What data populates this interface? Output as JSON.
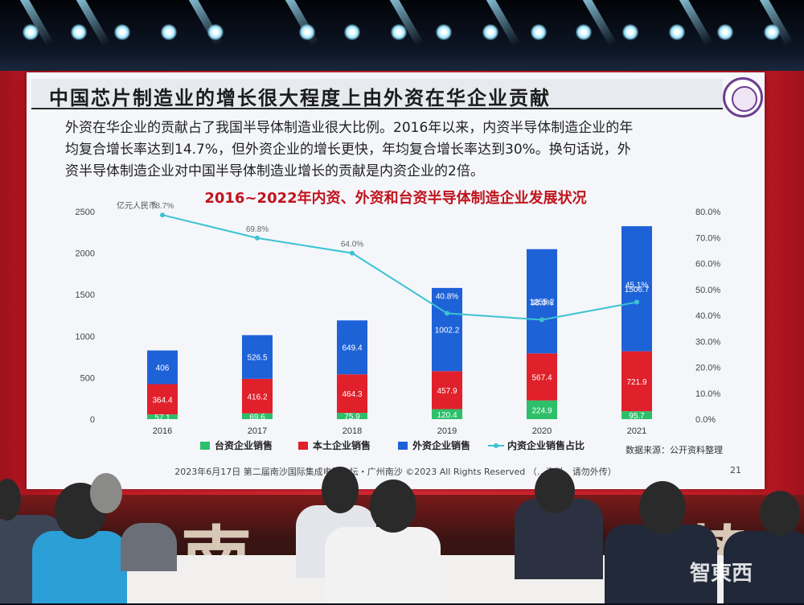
{
  "slide": {
    "title": "中国芯片制造业的增长很大程度上由外资在华企业贡献",
    "paragraph_lines": [
      "外资在华企业的贡献占了我国半导体制造业很大比例。2016年以来，内资半导体制造企业的年",
      "均复合增长率达到14.7%，但外资企业的增长更快，年均复合增长率达到30%。换句话说，外",
      "资半导体制造企业对中国半导体制造业增长的贡献是内资企业的2倍。"
    ],
    "chart_heading": "2016~2022年内资、外资和台资半导体制造企业发展状况",
    "source_note": "数据来源：公开资料整理",
    "footer": "2023年6月17日 第二届南沙国际集成电路…坛・广州南沙 ©2023 All Rights Reserved （…资料，请勿外传）",
    "page_number": "21"
  },
  "chart_data": {
    "type": "bar",
    "stacked": true,
    "categories": [
      "2016",
      "2017",
      "2018",
      "2019",
      "2020",
      "2021"
    ],
    "unit_label": "亿元人民币",
    "series": [
      {
        "name": "台资企业销售",
        "color": "#2dbf6a",
        "values": [
          57.1,
          69.6,
          75.9,
          120.4,
          224.9,
          95.7
        ],
        "labels": [
          "57.1",
          "69.6",
          "75.9",
          "120.4",
          "224.9",
          "95.7"
        ]
      },
      {
        "name": "本土企业销售",
        "color": "#e0202a",
        "values": [
          364.4,
          416.2,
          464.3,
          457.9,
          567.4,
          721.9
        ],
        "labels": [
          "364.4",
          "416.2",
          "464.3",
          "457.9",
          "567.4",
          "721.9"
        ]
      },
      {
        "name": "外资企业销售",
        "color": "#1e62d8",
        "values": [
          406,
          526.5,
          649.4,
          1002.2,
          1255.2,
          1506.7
        ],
        "labels": [
          "406",
          "526.5",
          "649.4",
          "1002.2",
          "1255.2",
          "1506.7"
        ]
      }
    ],
    "line_series": {
      "name": "内资企业销售占比",
      "color": "#3cc3d2",
      "axis": "right",
      "values": [
        78.7,
        69.8,
        64.0,
        40.8,
        38.3,
        45.1
      ],
      "labels": [
        "78.7%",
        "69.8%",
        "64.0%",
        "40.8%",
        "38.3%",
        "45.1%"
      ]
    },
    "y_left": {
      "range": [
        0,
        2500
      ],
      "ticks": [
        "0",
        "500",
        "1000",
        "1500",
        "2000",
        "2500"
      ]
    },
    "y_right": {
      "range": [
        0,
        80
      ],
      "ticks": [
        "0.0%",
        "10.0%",
        "20.0%",
        "30.0%",
        "40.0%",
        "50.0%",
        "60.0%",
        "70.0%",
        "80.0%"
      ]
    },
    "legend_position": "bottom"
  },
  "watermark": "智東西",
  "banner_chars": [
    "南",
    "势"
  ]
}
